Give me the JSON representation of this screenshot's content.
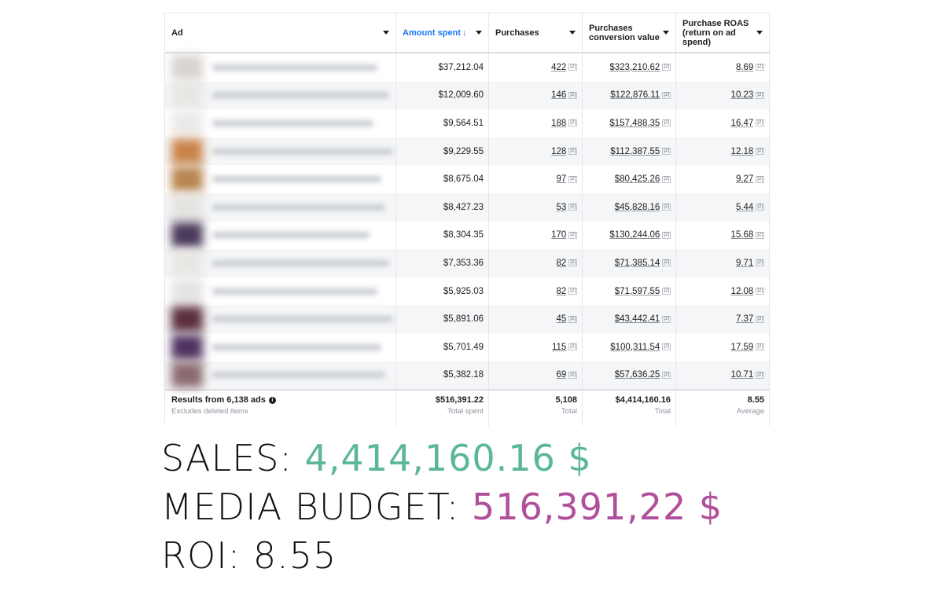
{
  "table": {
    "headers": {
      "ad": "Ad",
      "amount_spent": "Amount spent",
      "sort_arrow": "↓",
      "purchases": "Purchases",
      "conversion_value_line1": "Purchases",
      "conversion_value_line2": "conversion value",
      "roas_line1": "Purchase ROAS",
      "roas_line2": "(return on ad",
      "roas_line3": "spend)"
    },
    "footnote_marker": "[2]",
    "rows": [
      {
        "spent": "$37,212.04",
        "purchases": "422",
        "value": "$323,210.62",
        "roas": "8.69"
      },
      {
        "spent": "$12,009.60",
        "purchases": "146",
        "value": "$122,876.11",
        "roas": "10.23"
      },
      {
        "spent": "$9,564.51",
        "purchases": "188",
        "value": "$157,488.35",
        "roas": "16.47"
      },
      {
        "spent": "$9,229.55",
        "purchases": "128",
        "value": "$112,387.55",
        "roas": "12.18"
      },
      {
        "spent": "$8,675.04",
        "purchases": "97",
        "value": "$80,425.26",
        "roas": "9.27"
      },
      {
        "spent": "$8,427.23",
        "purchases": "53",
        "value": "$45,828.16",
        "roas": "5.44"
      },
      {
        "spent": "$8,304.35",
        "purchases": "170",
        "value": "$130,244.06",
        "roas": "15.68"
      },
      {
        "spent": "$7,353.36",
        "purchases": "82",
        "value": "$71,385.14",
        "roas": "9.71"
      },
      {
        "spent": "$5,925.03",
        "purchases": "82",
        "value": "$71,597.55",
        "roas": "12.08"
      },
      {
        "spent": "$5,891.06",
        "purchases": "45",
        "value": "$43,442.41",
        "roas": "7.37"
      },
      {
        "spent": "$5,701.49",
        "purchases": "115",
        "value": "$100,311.54",
        "roas": "17.59"
      },
      {
        "spent": "$5,382.18",
        "purchases": "69",
        "value": "$57,636.25",
        "roas": "10.71"
      }
    ],
    "footer": {
      "results": "Results from 6,138 ads",
      "excludes": "Excludes deleted items",
      "total_spent": "$516,391.22",
      "total_spent_label": "Total spent",
      "total_purchases": "5,108",
      "total_purchases_label": "Total",
      "total_value": "$4,414,160.16",
      "total_value_label": "Total",
      "avg_roas": "8.55",
      "avg_roas_label": "Average"
    }
  },
  "summary": {
    "sales_label": "SALES:",
    "sales_value": "4,414,160.16 $",
    "budget_label": "MEDIA BUDGET:",
    "budget_value": "516,391,22 $",
    "roi_label": "ROI:",
    "roi_value": "8.55"
  },
  "colors": {
    "sales": "#5cb894",
    "budget": "#b04f9b",
    "accent": "#1877f2"
  },
  "thumbs": [
    "#d8d4cf",
    "#e8e6e3",
    "#eceae8",
    "#c9834a",
    "#b88650",
    "#e5e3e0",
    "#4a3a5a",
    "#e8e6e3",
    "#e6e4e2",
    "#5a2e3a",
    "#503260",
    "#8a6a6e"
  ]
}
